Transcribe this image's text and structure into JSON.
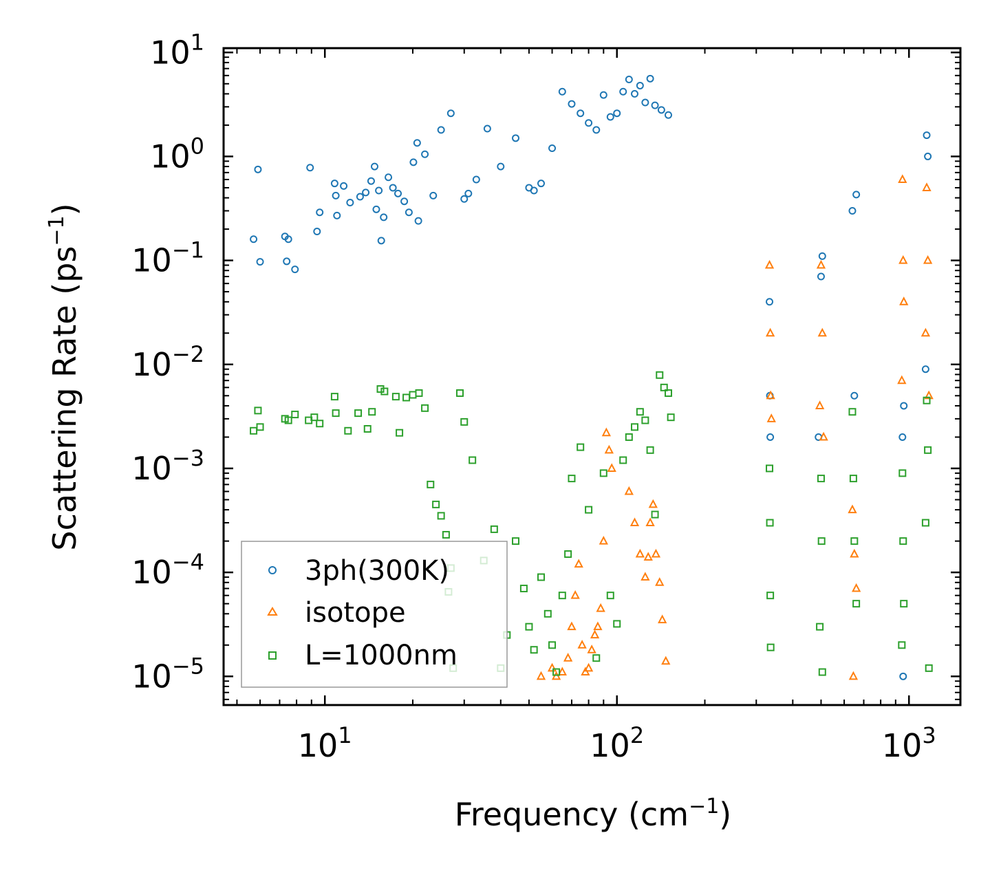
{
  "chart_data": {
    "type": "scatter",
    "xlabel": "Frequency (cm",
    "xlabel_sup": "−1",
    "xlabel_end": ")",
    "ylabel": "Scattering Rate (ps",
    "ylabel_sup": "−1",
    "ylabel_end": ")",
    "xscale": "log",
    "yscale": "log",
    "xlim": [
      4.5,
      1500
    ],
    "ylim": [
      5.3e-06,
      11
    ],
    "grid": false,
    "legend_position": "bottom-left",
    "x_ticks": [
      {
        "value": 10,
        "base": "10",
        "exp": "1"
      },
      {
        "value": 100,
        "base": "10",
        "exp": "2"
      },
      {
        "value": 1000,
        "base": "10",
        "exp": "3"
      }
    ],
    "y_ticks": [
      {
        "value": 10,
        "base": "10",
        "exp": "1"
      },
      {
        "value": 1,
        "base": "10",
        "exp": "0"
      },
      {
        "value": 0.1,
        "base": "10",
        "exp": "−1"
      },
      {
        "value": 0.01,
        "base": "10",
        "exp": "−2"
      },
      {
        "value": 0.001,
        "base": "10",
        "exp": "−3"
      },
      {
        "value": 0.0001,
        "base": "10",
        "exp": "−4"
      },
      {
        "value": 1e-05,
        "base": "10",
        "exp": "−5"
      }
    ],
    "series": [
      {
        "name": "3ph(300K)",
        "marker": "circle",
        "color": "#1f77b4",
        "points": [
          [
            5.7,
            0.16
          ],
          [
            5.9,
            0.75
          ],
          [
            6.0,
            0.097
          ],
          [
            7.3,
            0.17
          ],
          [
            7.4,
            0.098
          ],
          [
            7.5,
            0.16
          ],
          [
            7.9,
            0.082
          ],
          [
            8.9,
            0.78
          ],
          [
            9.4,
            0.19
          ],
          [
            9.6,
            0.29
          ],
          [
            10.8,
            0.55
          ],
          [
            10.9,
            0.42
          ],
          [
            11.0,
            0.27
          ],
          [
            11.6,
            0.52
          ],
          [
            12.2,
            0.36
          ],
          [
            13.2,
            0.41
          ],
          [
            13.8,
            0.45
          ],
          [
            14.4,
            0.58
          ],
          [
            14.8,
            0.8
          ],
          [
            15.0,
            0.31
          ],
          [
            15.3,
            0.47
          ],
          [
            15.6,
            0.155
          ],
          [
            15.9,
            0.26
          ],
          [
            16.5,
            0.63
          ],
          [
            17.1,
            0.5
          ],
          [
            17.8,
            0.44
          ],
          [
            18.7,
            0.37
          ],
          [
            19.4,
            0.29
          ],
          [
            20.1,
            0.88
          ],
          [
            20.7,
            1.35
          ],
          [
            20.9,
            0.24
          ],
          [
            22.0,
            1.05
          ],
          [
            23.5,
            0.42
          ],
          [
            25.0,
            1.8
          ],
          [
            27.0,
            2.6
          ],
          [
            30.0,
            0.39
          ],
          [
            31.0,
            0.44
          ],
          [
            33.0,
            0.6
          ],
          [
            36.0,
            1.85
          ],
          [
            40.0,
            0.8
          ],
          [
            45.0,
            1.5
          ],
          [
            50.0,
            0.5
          ],
          [
            52.0,
            0.47
          ],
          [
            55.0,
            0.55
          ],
          [
            60.0,
            1.2
          ],
          [
            65.0,
            4.2
          ],
          [
            70.0,
            3.2
          ],
          [
            75.0,
            2.6
          ],
          [
            80.0,
            2.1
          ],
          [
            85.0,
            1.8
          ],
          [
            90.0,
            3.9
          ],
          [
            95.0,
            2.4
          ],
          [
            100.0,
            2.6
          ],
          [
            105.0,
            4.2
          ],
          [
            110.0,
            5.5
          ],
          [
            115.0,
            4.0
          ],
          [
            120.0,
            4.8
          ],
          [
            125.0,
            3.3
          ],
          [
            130.0,
            5.6
          ],
          [
            135.0,
            3.1
          ],
          [
            142.0,
            2.8
          ],
          [
            150.0,
            2.5
          ],
          [
            333,
            0.04
          ],
          [
            334,
            0.005
          ],
          [
            335,
            0.002
          ],
          [
            500,
            0.07
          ],
          [
            505,
            0.11
          ],
          [
            490,
            0.002
          ],
          [
            640,
            0.3
          ],
          [
            660,
            0.43
          ],
          [
            650,
            0.005
          ],
          [
            950,
            0.002
          ],
          [
            955,
            1e-05
          ],
          [
            960,
            0.004
          ],
          [
            1150,
            1.6
          ],
          [
            1160,
            1.0
          ],
          [
            1140,
            0.009
          ]
        ]
      },
      {
        "name": "isotope",
        "marker": "triangle",
        "color": "#ff7f0e",
        "points": [
          [
            55,
            1e-05
          ],
          [
            60,
            1.2e-05
          ],
          [
            62,
            1e-05
          ],
          [
            65,
            1.1e-05
          ],
          [
            68,
            1.5e-05
          ],
          [
            70,
            3e-05
          ],
          [
            72,
            6e-05
          ],
          [
            74,
            0.00012
          ],
          [
            76,
            2e-05
          ],
          [
            78,
            1.1e-05
          ],
          [
            80,
            1.2e-05
          ],
          [
            82,
            1.8e-05
          ],
          [
            84,
            2.5e-05
          ],
          [
            86,
            3e-05
          ],
          [
            88,
            4.5e-05
          ],
          [
            90,
            0.0002
          ],
          [
            92,
            0.0022
          ],
          [
            94,
            0.0015
          ],
          [
            96,
            0.001
          ],
          [
            110,
            0.0006
          ],
          [
            115,
            0.0003
          ],
          [
            120,
            0.00015
          ],
          [
            125,
            9e-05
          ],
          [
            128,
            0.00014
          ],
          [
            130,
            0.0003
          ],
          [
            133,
            0.00045
          ],
          [
            136,
            0.00015
          ],
          [
            140,
            8e-05
          ],
          [
            143,
            3.5e-05
          ],
          [
            147,
            1.4e-05
          ],
          [
            333,
            0.09
          ],
          [
            335,
            0.02
          ],
          [
            336,
            0.005
          ],
          [
            338,
            0.003
          ],
          [
            500,
            0.09
          ],
          [
            505,
            0.02
          ],
          [
            495,
            0.004
          ],
          [
            510,
            0.002
          ],
          [
            640,
            0.0004
          ],
          [
            650,
            0.00015
          ],
          [
            660,
            7e-05
          ],
          [
            645,
            1e-05
          ],
          [
            950,
            0.6
          ],
          [
            955,
            0.1
          ],
          [
            960,
            0.04
          ],
          [
            945,
            0.007
          ],
          [
            1150,
            0.5
          ],
          [
            1160,
            0.1
          ],
          [
            1140,
            0.02
          ],
          [
            1170,
            0.005
          ]
        ]
      },
      {
        "name": "L=1000nm",
        "marker": "square",
        "color": "#2ca02c",
        "points": [
          [
            5.7,
            0.0023
          ],
          [
            5.9,
            0.0036
          ],
          [
            6.0,
            0.0025
          ],
          [
            7.3,
            0.003
          ],
          [
            7.5,
            0.0029
          ],
          [
            7.9,
            0.0033
          ],
          [
            8.8,
            0.0029
          ],
          [
            9.2,
            0.0031
          ],
          [
            9.6,
            0.0027
          ],
          [
            10.8,
            0.0049
          ],
          [
            10.9,
            0.0034
          ],
          [
            12.0,
            0.0023
          ],
          [
            13.0,
            0.0034
          ],
          [
            14.0,
            0.0024
          ],
          [
            14.5,
            0.0035
          ],
          [
            15.5,
            0.0058
          ],
          [
            16.0,
            0.0055
          ],
          [
            17.5,
            0.0049
          ],
          [
            18.0,
            0.0022
          ],
          [
            19.0,
            0.0048
          ],
          [
            20.0,
            0.0051
          ],
          [
            21.0,
            0.0053
          ],
          [
            22.0,
            0.0038
          ],
          [
            23.0,
            0.0007
          ],
          [
            24.0,
            0.00045
          ],
          [
            25.0,
            0.00035
          ],
          [
            26.0,
            0.00023
          ],
          [
            26.5,
            6.5e-05
          ],
          [
            27.0,
            0.00011
          ],
          [
            27.5,
            1.2e-05
          ],
          [
            29.0,
            0.0053
          ],
          [
            30.0,
            0.0028
          ],
          [
            32.0,
            0.0012
          ],
          [
            35.0,
            0.00013
          ],
          [
            38.0,
            0.00026
          ],
          [
            40.0,
            1.2e-05
          ],
          [
            42.0,
            2.5e-05
          ],
          [
            45.0,
            0.0002
          ],
          [
            48.0,
            7e-05
          ],
          [
            50.0,
            3e-05
          ],
          [
            52.0,
            1.8e-05
          ],
          [
            55.0,
            9e-05
          ],
          [
            58.0,
            4e-05
          ],
          [
            60.0,
            2e-05
          ],
          [
            62.0,
            1.1e-05
          ],
          [
            65.0,
            6e-05
          ],
          [
            68.0,
            0.00015
          ],
          [
            70.0,
            0.0008
          ],
          [
            75.0,
            0.0016
          ],
          [
            80.0,
            0.0004
          ],
          [
            85.0,
            1.5e-05
          ],
          [
            90.0,
            0.0009
          ],
          [
            95.0,
            6e-05
          ],
          [
            100.0,
            3.2e-05
          ],
          [
            105.0,
            0.0012
          ],
          [
            110.0,
            0.002
          ],
          [
            115.0,
            0.0025
          ],
          [
            120.0,
            0.0035
          ],
          [
            125.0,
            0.0029
          ],
          [
            130.0,
            0.0015
          ],
          [
            135.0,
            0.00036
          ],
          [
            140.0,
            0.0079
          ],
          [
            145.0,
            0.006
          ],
          [
            150.0,
            0.0053
          ],
          [
            153.0,
            0.0031
          ],
          [
            333,
            0.001
          ],
          [
            334,
            0.0003
          ],
          [
            335,
            6e-05
          ],
          [
            336,
            1.9e-05
          ],
          [
            500,
            0.0008
          ],
          [
            502,
            0.0002
          ],
          [
            495,
            3e-05
          ],
          [
            505,
            1.1e-05
          ],
          [
            640,
            0.0035
          ],
          [
            645,
            0.0008
          ],
          [
            650,
            0.0002
          ],
          [
            660,
            5e-05
          ],
          [
            950,
            0.0009
          ],
          [
            955,
            0.0002
          ],
          [
            960,
            5e-05
          ],
          [
            945,
            2e-05
          ],
          [
            1150,
            0.0045
          ],
          [
            1160,
            0.0015
          ],
          [
            1140,
            0.0003
          ],
          [
            1170,
            1.2e-05
          ]
        ]
      }
    ]
  }
}
